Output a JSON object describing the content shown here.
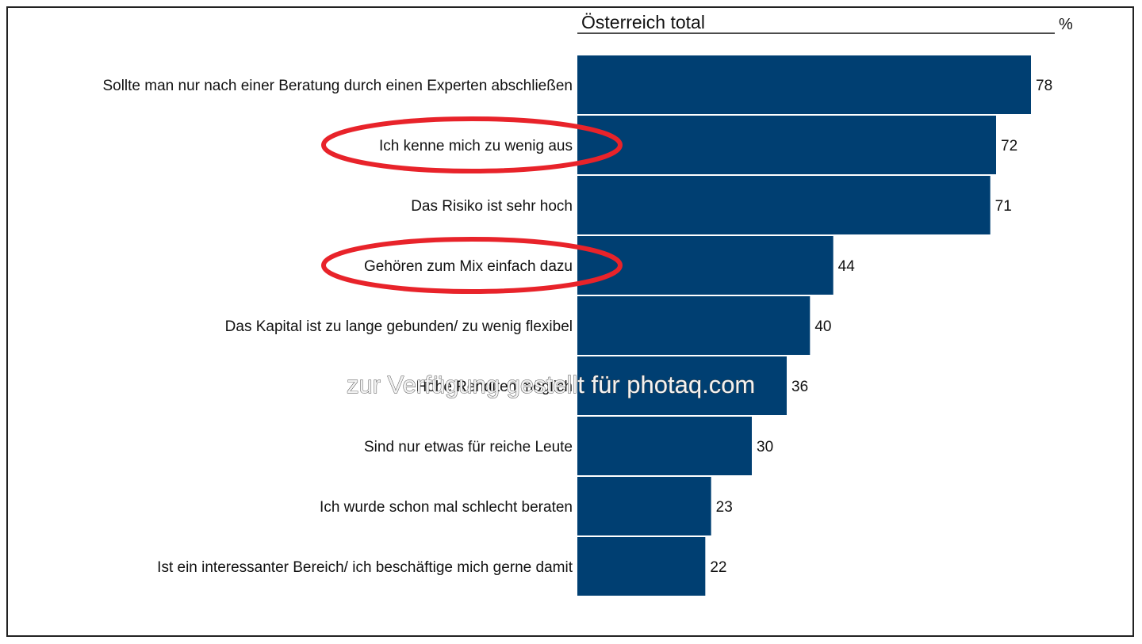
{
  "chart_data": {
    "type": "bar",
    "orientation": "horizontal",
    "title": "Österreich total",
    "unit": "%",
    "xlim": [
      0,
      78
    ],
    "grid": false,
    "legend": "none",
    "bar_color": "#003f72",
    "highlight_color": "#e8232a",
    "categories": [
      "Sollte man nur nach einer Beratung durch einen Experten abschließen",
      "Ich kenne mich zu wenig aus",
      "Das Risiko ist sehr hoch",
      "Gehören zum Mix einfach dazu",
      "Das Kapital ist zu lange gebunden/ zu wenig flexibel",
      "Hohe Renditen möglich",
      "Sind nur etwas für reiche Leute",
      "Ich wurde schon mal schlecht beraten",
      "Ist ein interessanter Bereich/ ich beschäftige mich gerne damit"
    ],
    "values": [
      78,
      72,
      71,
      44,
      40,
      36,
      30,
      23,
      22
    ],
    "highlighted": [
      1,
      3
    ]
  },
  "watermark": "zur Verfügung gestellt für photaq.com"
}
